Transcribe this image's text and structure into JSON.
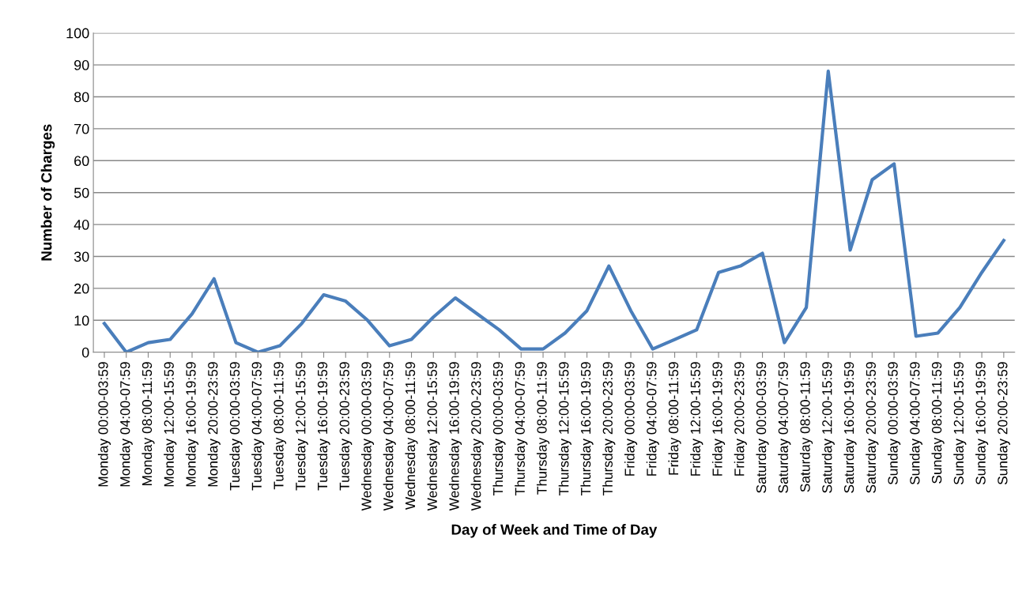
{
  "chart_data": {
    "type": "line",
    "xlabel": "Day of Week and Time of Day",
    "ylabel": "Number of Charges",
    "categories": [
      "Monday 00:00-03:59",
      "Monday 04:00-07:59",
      "Monday 08:00-11:59",
      "Monday 12:00-15:59",
      "Monday 16:00-19:59",
      "Monday 20:00-23:59",
      "Tuesday 00:00-03:59",
      "Tuesday 04:00-07:59",
      "Tuesday 08:00-11:59",
      "Tuesday 12:00-15:59",
      "Tuesday 16:00-19:59",
      "Tuesday 20:00-23:59",
      "Wednesday 00:00-03:59",
      "Wednesday 04:00-07:59",
      "Wednesday 08:00-11:59",
      "Wednesday 12:00-15:59",
      "Wednesday 16:00-19:59",
      "Wednesday 20:00-23:59",
      "Thursday 00:00-03:59",
      "Thursday 04:00-07:59",
      "Thursday 08:00-11:59",
      "Thursday 12:00-15:59",
      "Thursday 16:00-19:59",
      "Thursday 20:00-23:59",
      "Friday 00:00-03:59",
      "Friday 04:00-07:59",
      "Friday 08:00-11:59",
      "Friday 12:00-15:59",
      "Friday 16:00-19:59",
      "Friday 20:00-23:59",
      "Saturday 00:00-03:59",
      "Saturday 04:00-07:59",
      "Saturday 08:00-11:59",
      "Saturday 12:00-15:59",
      "Saturday 16:00-19:59",
      "Saturday 20:00-23:59",
      "Sunday 00:00-03:59",
      "Sunday 04:00-07:59",
      "Sunday 08:00-11:59",
      "Sunday 12:00-15:59",
      "Sunday 16:00-19:59",
      "Sunday 20:00-23:59"
    ],
    "series": [
      {
        "color": "#4a7ebb",
        "values": [
          9,
          0,
          3,
          4,
          12,
          23,
          3,
          0,
          2,
          9,
          18,
          16,
          10,
          2,
          4,
          11,
          17,
          12,
          7,
          1,
          1,
          6,
          13,
          27,
          13,
          1,
          4,
          7,
          25,
          27,
          31,
          3,
          14,
          88,
          32,
          54,
          59,
          5,
          6,
          14,
          25,
          35
        ]
      }
    ],
    "ylim": [
      0,
      100
    ],
    "yticks": [
      0,
      10,
      20,
      30,
      40,
      50,
      60,
      70,
      80,
      90,
      100
    ],
    "grid": "y",
    "legend": false,
    "marker": "none",
    "line_style": "solid"
  }
}
